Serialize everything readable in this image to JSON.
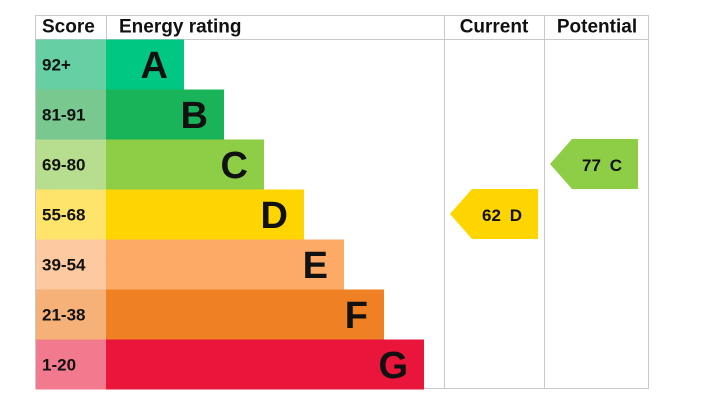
{
  "header": {
    "score": "Score",
    "rating": "Energy rating",
    "current": "Current",
    "potential": "Potential"
  },
  "rows": [
    {
      "score": "92+",
      "band": "A",
      "color": "#00c781",
      "score_color": "#66cfa4"
    },
    {
      "score": "81-91",
      "band": "B",
      "color": "#19b459",
      "score_color": "#79c88f"
    },
    {
      "score": "69-80",
      "band": "C",
      "color": "#8dce46",
      "score_color": "#b7dd8e"
    },
    {
      "score": "55-68",
      "band": "D",
      "color": "#ffd500",
      "score_color": "#ffe46b"
    },
    {
      "score": "39-54",
      "band": "E",
      "color": "#fcaa65",
      "score_color": "#fcc9a0"
    },
    {
      "score": "21-38",
      "band": "F",
      "color": "#ef8023",
      "score_color": "#f5b177"
    },
    {
      "score": "1-20",
      "band": "G",
      "color": "#e9153b",
      "score_color": "#f27a8e"
    }
  ],
  "current": {
    "value": 62,
    "band": "D"
  },
  "potential": {
    "value": 77,
    "band": "C"
  }
}
